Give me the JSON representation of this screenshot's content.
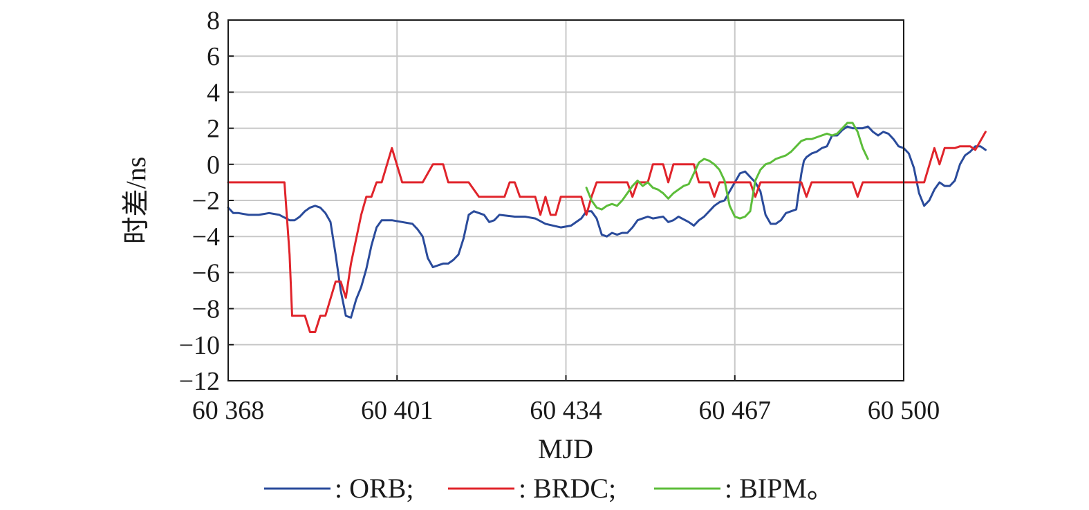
{
  "chart_data": {
    "type": "line",
    "title": "",
    "xlabel": "MJD",
    "ylabel": "时差/ns",
    "xlim": [
      60368,
      60500
    ],
    "ylim": [
      -12,
      8
    ],
    "xticks": [
      60368,
      60401,
      60434,
      60467,
      60500
    ],
    "xtick_labels": [
      "60 368",
      "60 401",
      "60 434",
      "60 467",
      "60 500"
    ],
    "yticks": [
      8,
      6,
      4,
      2,
      0,
      -2,
      -4,
      -6,
      -8,
      -10,
      -12
    ],
    "ytick_labels": [
      "8",
      "6",
      "4",
      "2",
      "0",
      "−2",
      "−4",
      "−6",
      "−8",
      "−10",
      "−12"
    ],
    "grid": true,
    "legend_position": "bottom",
    "legend": {
      "orb": ": ORB;",
      "brdc": ": BRDC;",
      "bipm": ": BIPM。"
    },
    "series": [
      {
        "key": "orb",
        "color": "#2a4b9b",
        "points": [
          [
            60368,
            -2.4
          ],
          [
            60369,
            -2.7
          ],
          [
            60370,
            -2.7
          ],
          [
            60372,
            -2.8
          ],
          [
            60374,
            -2.8
          ],
          [
            60376,
            -2.7
          ],
          [
            60378,
            -2.8
          ],
          [
            60380,
            -3.1
          ],
          [
            60381,
            -3.1
          ],
          [
            60382,
            -2.9
          ],
          [
            60383,
            -2.6
          ],
          [
            60384,
            -2.4
          ],
          [
            60385,
            -2.3
          ],
          [
            60386,
            -2.4
          ],
          [
            60387,
            -2.7
          ],
          [
            60388,
            -3.2
          ],
          [
            60389,
            -5.0
          ],
          [
            60390,
            -7.0
          ],
          [
            60391,
            -8.4
          ],
          [
            60392,
            -8.5
          ],
          [
            60393,
            -7.5
          ],
          [
            60394,
            -6.8
          ],
          [
            60395,
            -5.8
          ],
          [
            60396,
            -4.5
          ],
          [
            60397,
            -3.5
          ],
          [
            60398,
            -3.1
          ],
          [
            60400,
            -3.1
          ],
          [
            60402,
            -3.2
          ],
          [
            60404,
            -3.3
          ],
          [
            60405,
            -3.6
          ],
          [
            60406,
            -4.0
          ],
          [
            60407,
            -5.2
          ],
          [
            60408,
            -5.7
          ],
          [
            60409,
            -5.6
          ],
          [
            60410,
            -5.5
          ],
          [
            60411,
            -5.5
          ],
          [
            60412,
            -5.3
          ],
          [
            60413,
            -5.0
          ],
          [
            60414,
            -4.1
          ],
          [
            60415,
            -2.8
          ],
          [
            60416,
            -2.6
          ],
          [
            60418,
            -2.8
          ],
          [
            60419,
            -3.2
          ],
          [
            60420,
            -3.1
          ],
          [
            60421,
            -2.8
          ],
          [
            60424,
            -2.9
          ],
          [
            60426,
            -2.9
          ],
          [
            60428,
            -3.0
          ],
          [
            60430,
            -3.3
          ],
          [
            60433,
            -3.5
          ],
          [
            60435,
            -3.4
          ],
          [
            60437,
            -3.0
          ],
          [
            60438,
            -2.6
          ],
          [
            60439,
            -2.6
          ],
          [
            60440,
            -3.0
          ],
          [
            60441,
            -3.9
          ],
          [
            60442,
            -4.0
          ],
          [
            60443,
            -3.8
          ],
          [
            60444,
            -3.9
          ],
          [
            60445,
            -3.8
          ],
          [
            60446,
            -3.8
          ],
          [
            60447,
            -3.5
          ],
          [
            60448,
            -3.1
          ],
          [
            60449,
            -3.0
          ],
          [
            60450,
            -2.9
          ],
          [
            60451,
            -3.0
          ],
          [
            60453,
            -2.9
          ],
          [
            60454,
            -3.2
          ],
          [
            60455,
            -3.1
          ],
          [
            60456,
            -2.9
          ],
          [
            60458,
            -3.2
          ],
          [
            60459,
            -3.4
          ],
          [
            60460,
            -3.1
          ],
          [
            60461,
            -2.9
          ],
          [
            60462,
            -2.6
          ],
          [
            60463,
            -2.3
          ],
          [
            60464,
            -2.1
          ],
          [
            60465,
            -2.0
          ],
          [
            60466,
            -1.5
          ],
          [
            60467,
            -1.0
          ],
          [
            60468,
            -0.5
          ],
          [
            60469,
            -0.4
          ],
          [
            60470,
            -0.7
          ],
          [
            60471,
            -1.0
          ],
          [
            60472,
            -1.5
          ],
          [
            60473,
            -2.8
          ],
          [
            60474,
            -3.3
          ],
          [
            60475,
            -3.3
          ],
          [
            60476,
            -3.1
          ],
          [
            60477,
            -2.7
          ],
          [
            60478,
            -2.6
          ],
          [
            60479,
            -2.5
          ],
          [
            60479.5,
            -1.5
          ],
          [
            60480,
            -0.5
          ],
          [
            60480.5,
            0.2
          ],
          [
            60481,
            0.4
          ],
          [
            60482,
            0.6
          ],
          [
            60483,
            0.7
          ],
          [
            60484,
            0.9
          ],
          [
            60485,
            1.0
          ],
          [
            60486,
            1.6
          ],
          [
            60487,
            1.6
          ],
          [
            60488,
            1.9
          ],
          [
            60489,
            2.1
          ],
          [
            60490,
            2.0
          ],
          [
            60491,
            2.0
          ],
          [
            60492,
            2.0
          ],
          [
            60493,
            2.1
          ],
          [
            60494,
            1.8
          ],
          [
            60495,
            1.6
          ],
          [
            60496,
            1.8
          ],
          [
            60497,
            1.7
          ],
          [
            60498,
            1.4
          ],
          [
            60499,
            1.0
          ],
          [
            60500,
            0.9
          ],
          [
            60501,
            0.6
          ],
          [
            60502,
            -0.2
          ],
          [
            60503,
            -1.6
          ],
          [
            60504,
            -2.3
          ],
          [
            60505,
            -2.0
          ],
          [
            60506,
            -1.4
          ],
          [
            60507,
            -1.0
          ],
          [
            60508,
            -1.2
          ],
          [
            60509,
            -1.2
          ],
          [
            60510,
            -0.9
          ],
          [
            60511,
            0.0
          ],
          [
            60512,
            0.5
          ],
          [
            60513,
            0.7
          ],
          [
            60514,
            1.0
          ],
          [
            60515,
            1.0
          ],
          [
            60516,
            0.8
          ]
        ]
      },
      {
        "key": "brdc",
        "color": "#e0242b",
        "points": [
          [
            60368,
            -1.0
          ],
          [
            60379,
            -1.0
          ],
          [
            60380,
            -5.0
          ],
          [
            60380.5,
            -8.4
          ],
          [
            60383,
            -8.4
          ],
          [
            60384,
            -9.3
          ],
          [
            60385,
            -9.3
          ],
          [
            60386,
            -8.4
          ],
          [
            60387,
            -8.4
          ],
          [
            60389,
            -6.5
          ],
          [
            60390,
            -6.5
          ],
          [
            60391,
            -7.4
          ],
          [
            60392,
            -5.5
          ],
          [
            60394,
            -2.8
          ],
          [
            60395,
            -1.8
          ],
          [
            60396,
            -1.8
          ],
          [
            60397,
            -1.0
          ],
          [
            60398,
            -1.0
          ],
          [
            60400,
            0.9
          ],
          [
            60402,
            -1.0
          ],
          [
            60406,
            -1.0
          ],
          [
            60408,
            0.0
          ],
          [
            60410,
            0.0
          ],
          [
            60411,
            -1.0
          ],
          [
            60415,
            -1.0
          ],
          [
            60417,
            -1.8
          ],
          [
            60422,
            -1.8
          ],
          [
            60423,
            -1.0
          ],
          [
            60424,
            -1.0
          ],
          [
            60425,
            -1.8
          ],
          [
            60428,
            -1.8
          ],
          [
            60429,
            -2.8
          ],
          [
            60430,
            -1.8
          ],
          [
            60431,
            -2.8
          ],
          [
            60432,
            -2.8
          ],
          [
            60433,
            -1.8
          ],
          [
            60437,
            -1.8
          ],
          [
            60438,
            -2.8
          ],
          [
            60439,
            -1.8
          ],
          [
            60440,
            -1.0
          ],
          [
            60446,
            -1.0
          ],
          [
            60447,
            -1.8
          ],
          [
            60448,
            -1.0
          ],
          [
            60450,
            -1.0
          ],
          [
            60451,
            0.0
          ],
          [
            60453,
            0.0
          ],
          [
            60454,
            -1.0
          ],
          [
            60455,
            0.0
          ],
          [
            60459,
            0.0
          ],
          [
            60460,
            -1.0
          ],
          [
            60462,
            -1.0
          ],
          [
            60463,
            -1.8
          ],
          [
            60464,
            -1.0
          ],
          [
            60470,
            -1.0
          ],
          [
            60471,
            -1.8
          ],
          [
            60472,
            -1.0
          ],
          [
            60480,
            -1.0
          ],
          [
            60481,
            -1.8
          ],
          [
            60482,
            -1.0
          ],
          [
            60490,
            -1.0
          ],
          [
            60491,
            -1.8
          ],
          [
            60492,
            -1.0
          ],
          [
            60504,
            -1.0
          ],
          [
            60506,
            0.9
          ],
          [
            60507,
            0.0
          ],
          [
            60508,
            0.9
          ],
          [
            60510,
            0.9
          ],
          [
            60511,
            1.0
          ],
          [
            60512,
            1.0
          ],
          [
            60513,
            1.0
          ],
          [
            60514,
            0.8
          ],
          [
            60516,
            1.8
          ]
        ]
      },
      {
        "key": "bipm",
        "color": "#5cbd3a",
        "points": [
          [
            60438,
            -1.3
          ],
          [
            60439,
            -2.0
          ],
          [
            60440,
            -2.4
          ],
          [
            60441,
            -2.5
          ],
          [
            60442,
            -2.3
          ],
          [
            60443,
            -2.2
          ],
          [
            60444,
            -2.3
          ],
          [
            60445,
            -2.0
          ],
          [
            60446,
            -1.6
          ],
          [
            60447,
            -1.2
          ],
          [
            60448,
            -0.9
          ],
          [
            60449,
            -1.2
          ],
          [
            60450,
            -1.0
          ],
          [
            60451,
            -1.3
          ],
          [
            60452,
            -1.4
          ],
          [
            60453,
            -1.6
          ],
          [
            60454,
            -1.9
          ],
          [
            60455,
            -1.6
          ],
          [
            60456,
            -1.4
          ],
          [
            60457,
            -1.2
          ],
          [
            60458,
            -1.1
          ],
          [
            60459,
            -0.5
          ],
          [
            60460,
            0.1
          ],
          [
            60461,
            0.3
          ],
          [
            60462,
            0.2
          ],
          [
            60463,
            0.0
          ],
          [
            60464,
            -0.3
          ],
          [
            60465,
            -0.9
          ],
          [
            60466,
            -2.3
          ],
          [
            60467,
            -2.9
          ],
          [
            60468,
            -3.0
          ],
          [
            60469,
            -2.9
          ],
          [
            60470,
            -2.6
          ],
          [
            60471,
            -0.9
          ],
          [
            60472,
            -0.3
          ],
          [
            60473,
            0.0
          ],
          [
            60474,
            0.1
          ],
          [
            60475,
            0.3
          ],
          [
            60476,
            0.4
          ],
          [
            60477,
            0.5
          ],
          [
            60478,
            0.7
          ],
          [
            60479,
            1.0
          ],
          [
            60480,
            1.3
          ],
          [
            60481,
            1.4
          ],
          [
            60482,
            1.4
          ],
          [
            60483,
            1.5
          ],
          [
            60484,
            1.6
          ],
          [
            60485,
            1.7
          ],
          [
            60486,
            1.6
          ],
          [
            60487,
            1.7
          ],
          [
            60488,
            2.0
          ],
          [
            60489,
            2.3
          ],
          [
            60490,
            2.3
          ],
          [
            60491,
            1.8
          ],
          [
            60492,
            0.9
          ],
          [
            60493,
            0.3
          ]
        ]
      }
    ]
  }
}
